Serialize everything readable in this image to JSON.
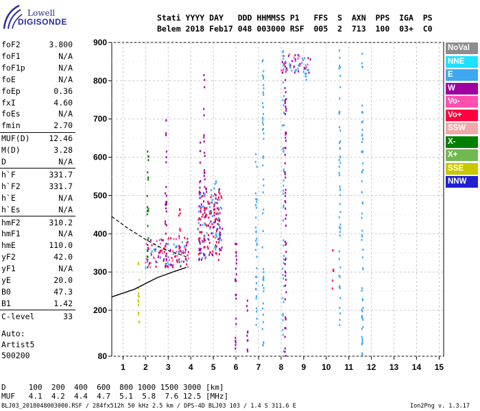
{
  "logo": {
    "line1": "Lowell",
    "line2": "DIGISONDE"
  },
  "header": {
    "line1": "Stati YYYY DAY   DDD HHMMSS P1   FFS  S  AXN  PPS  IGA  PS",
    "line2": "Belem 2018 Feb17 048 003000 RSF  005  2  713  100  03+  C0"
  },
  "params": [
    {
      "label": "foF2",
      "value": "3.800"
    },
    {
      "label": "foF1",
      "value": "N/A"
    },
    {
      "label": "foF1p",
      "value": "N/A"
    },
    {
      "label": "foE",
      "value": "N/A"
    },
    {
      "label": "foEp",
      "value": "0.36"
    },
    {
      "label": "fxI",
      "value": "4.60"
    },
    {
      "label": "foEs",
      "value": "N/A"
    },
    {
      "label": "fmin",
      "value": "2.70"
    },
    {
      "label": "MUF(D)",
      "value": "12.46"
    },
    {
      "label": "M(D)",
      "value": "3.28"
    },
    {
      "label": "D",
      "value": "N/A"
    },
    {
      "label": "h`F",
      "value": "331.7"
    },
    {
      "label": "h`F2",
      "value": "331.7"
    },
    {
      "label": "h`E",
      "value": "N/A"
    },
    {
      "label": "h`Es",
      "value": "N/A"
    },
    {
      "label": "hmF2",
      "value": "310.2"
    },
    {
      "label": "hmF1",
      "value": "N/A"
    },
    {
      "label": "hmE",
      "value": "110.0"
    },
    {
      "label": "yF2",
      "value": "42.0"
    },
    {
      "label": "yF1",
      "value": "N/A"
    },
    {
      "label": "yE",
      "value": "20.0"
    },
    {
      "label": "B0",
      "value": "47.3"
    },
    {
      "label": "B1",
      "value": "1.42"
    },
    {
      "label": "C-level",
      "value": "33"
    }
  ],
  "auto": {
    "line1": "Auto:",
    "line2": "Artist5",
    "line3": "500200"
  },
  "legend": [
    {
      "label": "NoVal",
      "color": "#8c8c8c"
    },
    {
      "label": "NNE",
      "color": "#1ee0ff"
    },
    {
      "label": "E",
      "color": "#40a8f0"
    },
    {
      "label": "W",
      "color": "#a000a0"
    },
    {
      "label": "Vo-",
      "color": "#ff50b0"
    },
    {
      "label": "Vo+",
      "color": "#ff0040"
    },
    {
      "label": "SSW",
      "color": "#f0a8a8"
    },
    {
      "label": "X-",
      "color": "#008000"
    },
    {
      "label": "X+",
      "color": "#70b850"
    },
    {
      "label": "SSE",
      "color": "#c8c800"
    },
    {
      "label": "NNW",
      "color": "#2020d0"
    }
  ],
  "dtable": {
    "row1": "D     100  200  400  600  800 1000 1500 3000 [km]",
    "row2": "MUF   4.1  4.2  4.4  4.7  5.1  5.8  7.6 12.5 [MHz]"
  },
  "footer": {
    "left": "BLJ03_2018048003000.RSF / 284fx512h 50 kHz 2.5 km / DPS-4D BLJ03 103 / 1.4 S 311.6 E",
    "right": "Ion2Png v. 1.3.17"
  },
  "chart_data": {
    "type": "scatter",
    "xlabel": "",
    "ylabel": "",
    "xlim": [
      0.5,
      15.2
    ],
    "ylim": [
      80,
      900
    ],
    "grid": true,
    "x_ticks": [
      "1",
      "2",
      "3",
      "4",
      "5",
      "6",
      "7",
      "8",
      "9",
      "10",
      "11",
      "12",
      "13",
      "14",
      "15"
    ],
    "y_ticks": [
      "80",
      "200",
      "300",
      "400",
      "500",
      "600",
      "700",
      "800",
      "900"
    ],
    "y_tick_values": [
      80,
      200,
      300,
      400,
      500,
      600,
      700,
      800,
      900
    ],
    "trace_columns": [
      {
        "x": 1.7,
        "ymin": 120,
        "ymax": 330,
        "color": "#c8c800"
      },
      {
        "x": 2.1,
        "ymin": 310,
        "ymax": 650,
        "color": "#008000"
      },
      {
        "x": 2.9,
        "ymin": 300,
        "ymax": 700,
        "color": "#a000a0"
      },
      {
        "x": 3.5,
        "ymin": 320,
        "ymax": 470,
        "color": "#ff0040"
      },
      {
        "x": 4.4,
        "ymin": 330,
        "ymax": 640,
        "color": "#a000a0"
      },
      {
        "x": 4.6,
        "ymin": 340,
        "ymax": 850,
        "color": "#a000a0"
      },
      {
        "x": 5.1,
        "ymin": 340,
        "ymax": 540,
        "color": "#40a8f0"
      },
      {
        "x": 5.3,
        "ymin": 360,
        "ymax": 490,
        "color": "#40a8f0"
      },
      {
        "x": 6.0,
        "ymin": 80,
        "ymax": 380,
        "color": "#a000a0"
      },
      {
        "x": 6.5,
        "ymin": 80,
        "ymax": 230,
        "color": "#a000a0"
      },
      {
        "x": 6.9,
        "ymin": 150,
        "ymax": 620,
        "color": "#40a8f0"
      },
      {
        "x": 7.2,
        "ymin": 100,
        "ymax": 860,
        "color": "#40a8f0"
      },
      {
        "x": 8.1,
        "ymin": 80,
        "ymax": 900,
        "color": "#40a8f0"
      },
      {
        "x": 8.2,
        "ymin": 80,
        "ymax": 900,
        "color": "#a000a0"
      },
      {
        "x": 9.1,
        "ymin": 800,
        "ymax": 880,
        "color": "#40a8f0"
      },
      {
        "x": 10.3,
        "ymin": 250,
        "ymax": 360,
        "color": "#ff0040"
      },
      {
        "x": 10.6,
        "ymin": 140,
        "ymax": 880,
        "color": "#40a8f0"
      },
      {
        "x": 11.6,
        "ymin": 80,
        "ymax": 880,
        "color": "#40a8f0"
      }
    ],
    "dense_regions": [
      {
        "xmin": 2.0,
        "xmax": 3.9,
        "ymin": 310,
        "ymax": 390,
        "colors": [
          "#ff0040",
          "#a000a0",
          "#40a8f0",
          "#ff50b0"
        ]
      },
      {
        "xmin": 4.3,
        "xmax": 5.4,
        "ymin": 330,
        "ymax": 520,
        "colors": [
          "#ff0040",
          "#40a8f0",
          "#a000a0"
        ]
      },
      {
        "xmin": 8.0,
        "xmax": 9.3,
        "ymin": 820,
        "ymax": 870,
        "colors": [
          "#40a8f0",
          "#a000a0",
          "#ff50b0"
        ]
      }
    ],
    "profile_solid": {
      "x": [
        0.5,
        1.5,
        2.5,
        3.2,
        3.6,
        3.8
      ],
      "y": [
        235,
        255,
        285,
        300,
        308,
        312
      ],
      "color": "#000000"
    },
    "profile_dashed": {
      "x": [
        0.5,
        1.2,
        2.0,
        2.8,
        3.4,
        3.8
      ],
      "y": [
        445,
        415,
        385,
        360,
        348,
        340
      ],
      "color": "#000000"
    }
  }
}
